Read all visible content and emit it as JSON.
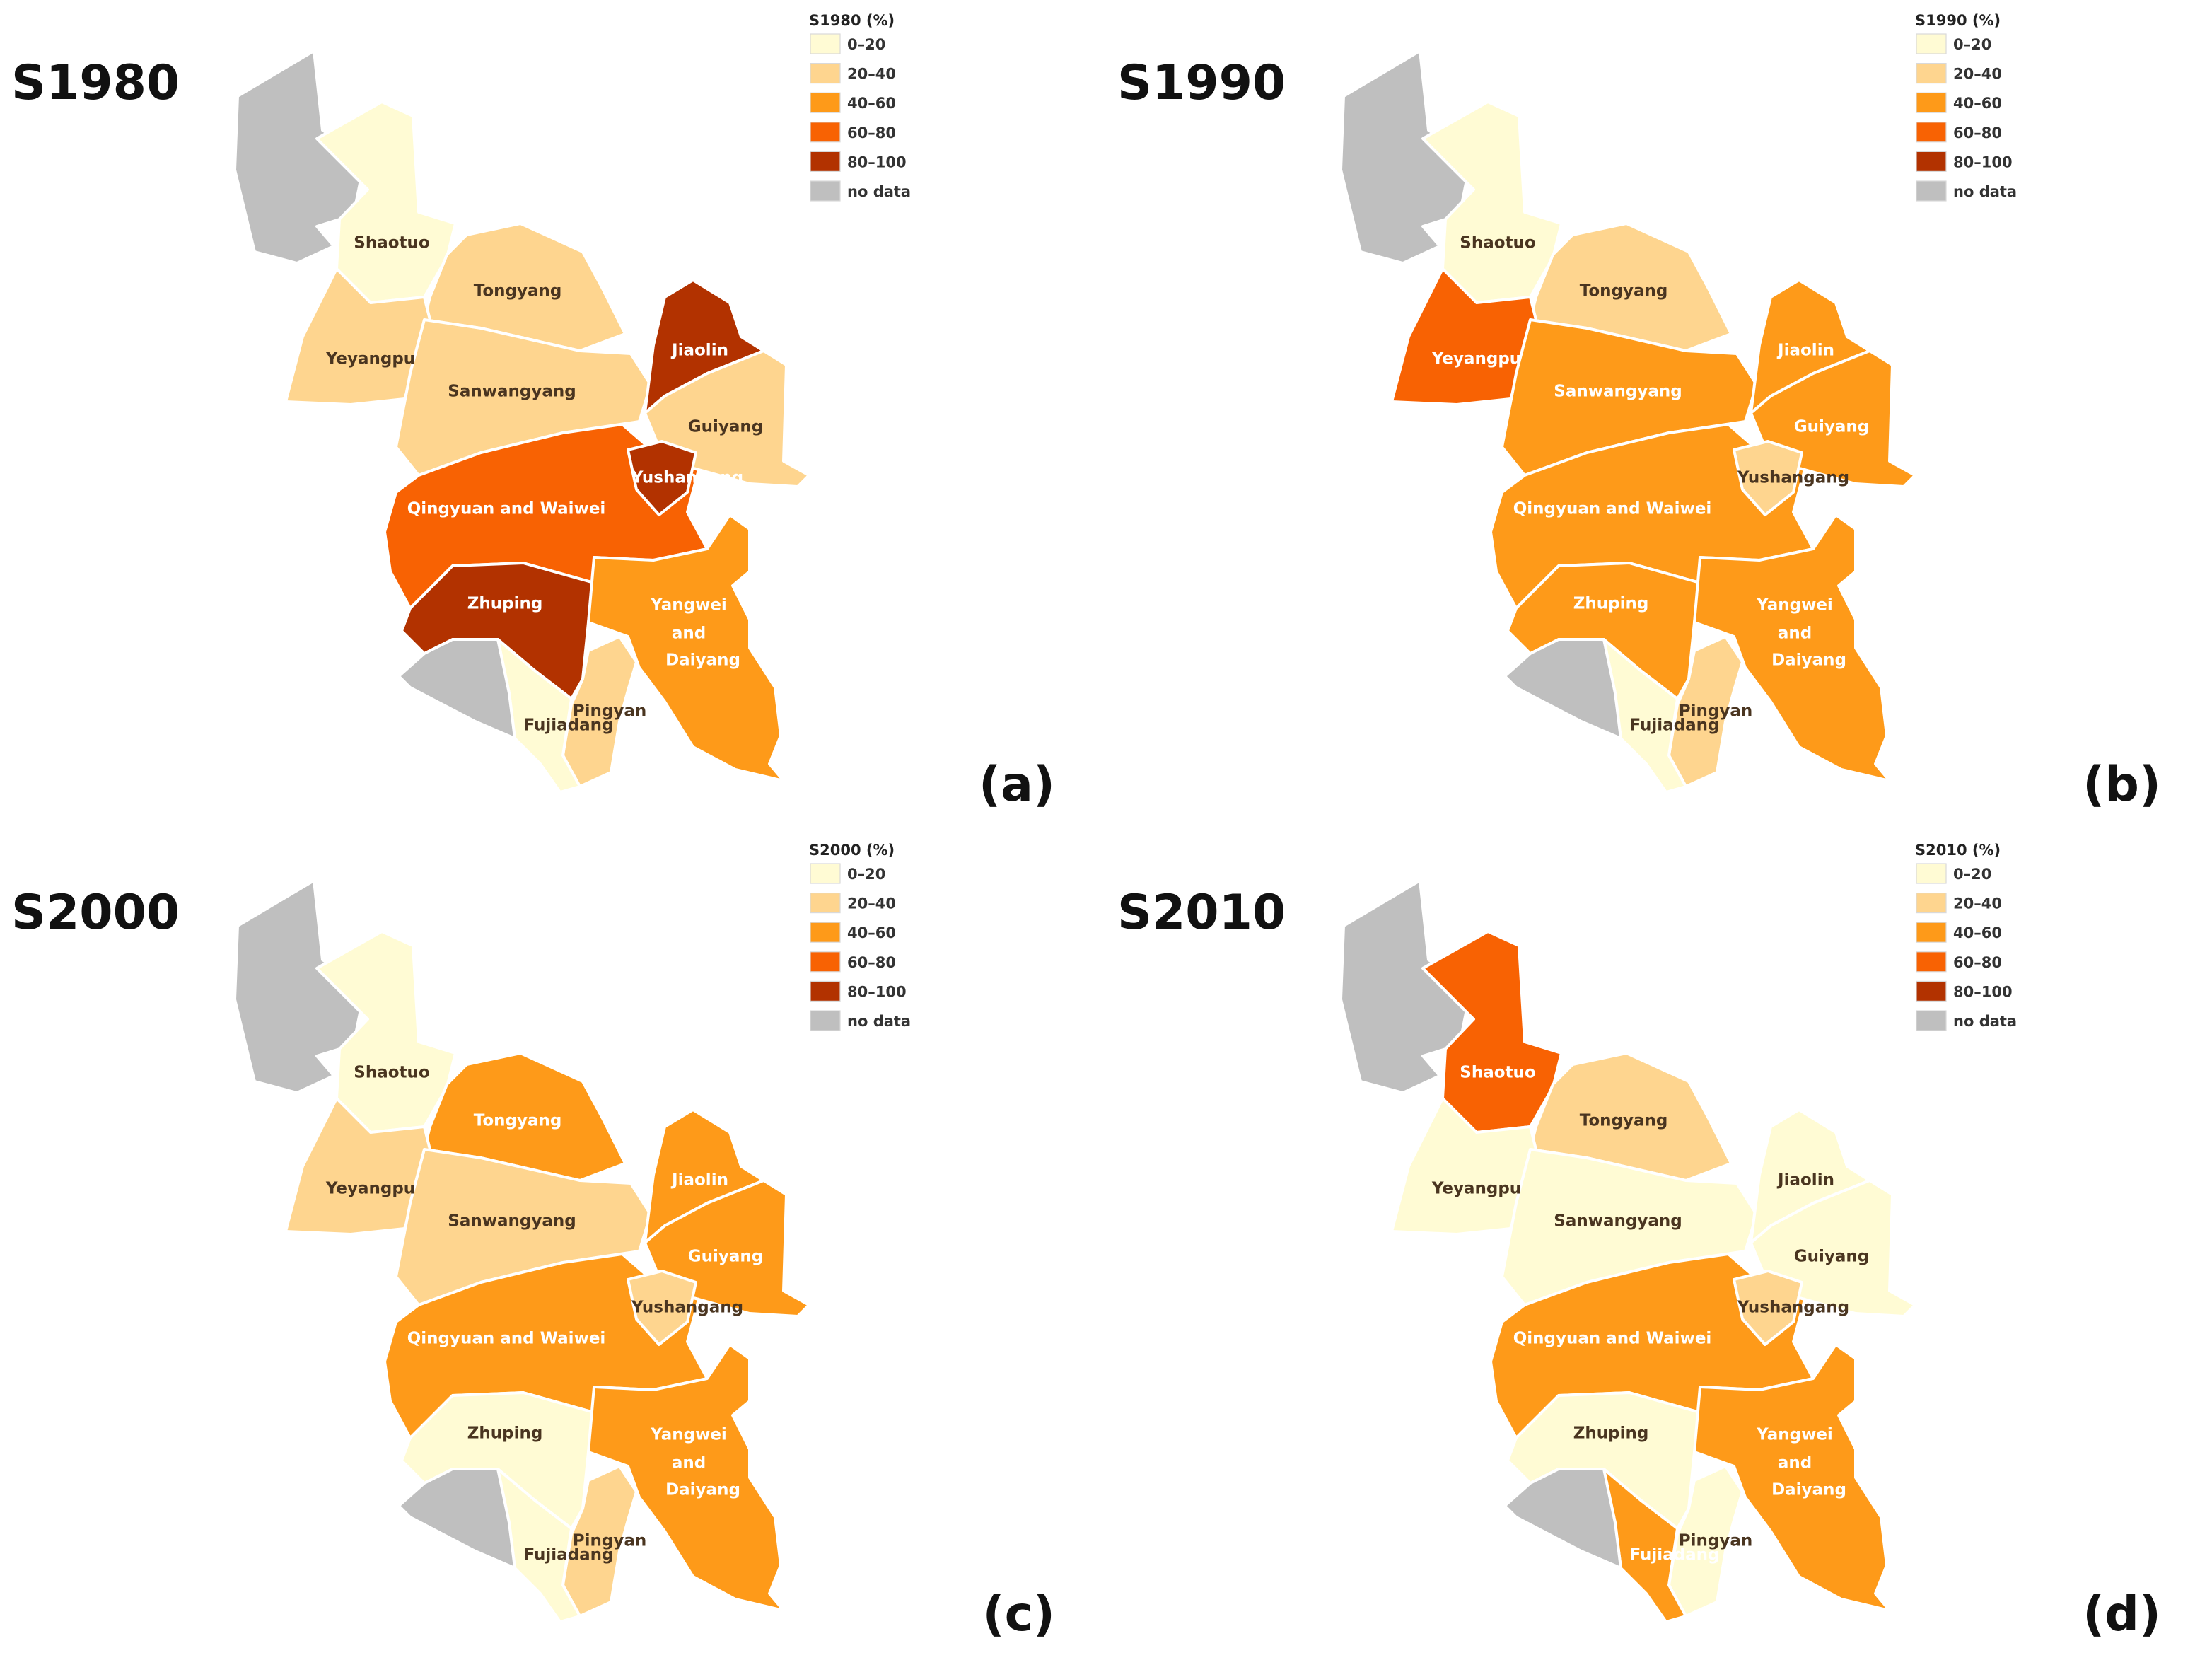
{
  "colors": {
    "0-20": "#FFFBD4",
    "20-40": "#FED58F",
    "40-60": "#FE9A19",
    "60-80": "#F86203",
    "80-100": "#B23200",
    "no data": "#BFBFBF"
  },
  "legend_classes": [
    {
      "key": "0-20",
      "label": "0–20"
    },
    {
      "key": "20-40",
      "label": "20–40"
    },
    {
      "key": "40-60",
      "label": "40–60"
    },
    {
      "key": "60-80",
      "label": "60–80"
    },
    {
      "key": "80-100",
      "label": "80–100"
    },
    {
      "key": "no data",
      "label": "no data"
    }
  ],
  "region_names": {
    "shaotuo": "Shaotuo",
    "tongyang": "Tongyang",
    "yeyangpu": "Yeyangpu",
    "sanwangyang": "Sanwangyang",
    "jiaolin": "Jiaolin",
    "guiyang": "Guiyang",
    "yushangang": "Yushangang",
    "qingyuan": "Qingyuan and Waiwei",
    "zhuping": "Zhuping",
    "yangwei_1": "Yangwei",
    "yangwei_2": "and",
    "yangwei_3": "Daiyang",
    "pingyan": "Pingyan",
    "fujiadang": "Fujiadang"
  },
  "panels": [
    {
      "title": "S1980",
      "letter": "(a)",
      "legend_title": "S1980 (%)",
      "classes": {
        "nodata": "no data",
        "shaotuo": "0-20",
        "tongyang": "20-40",
        "yeyangpu": "20-40",
        "sanwangyang": "20-40",
        "jiaolin": "80-100",
        "guiyang": "20-40",
        "yushangang": "80-100",
        "qingyuan": "60-80",
        "zhuping": "80-100",
        "yangwei": "40-60",
        "pingyan": "20-40",
        "fujiadang": "0-20",
        "southwest": "no data"
      }
    },
    {
      "title": "S1990",
      "letter": "(b)",
      "legend_title": "S1990 (%)",
      "classes": {
        "nodata": "no data",
        "shaotuo": "0-20",
        "tongyang": "20-40",
        "yeyangpu": "60-80",
        "sanwangyang": "40-60",
        "jiaolin": "40-60",
        "guiyang": "40-60",
        "yushangang": "20-40",
        "qingyuan": "40-60",
        "zhuping": "40-60",
        "yangwei": "40-60",
        "pingyan": "20-40",
        "fujiadang": "0-20",
        "southwest": "no data"
      }
    },
    {
      "title": "S2000",
      "letter": "(c)",
      "legend_title": "S2000 (%)",
      "classes": {
        "nodata": "no data",
        "shaotuo": "0-20",
        "tongyang": "40-60",
        "yeyangpu": "20-40",
        "sanwangyang": "20-40",
        "jiaolin": "40-60",
        "guiyang": "40-60",
        "yushangang": "20-40",
        "qingyuan": "40-60",
        "zhuping": "0-20",
        "yangwei": "40-60",
        "pingyan": "20-40",
        "fujiadang": "0-20",
        "southwest": "no data"
      }
    },
    {
      "title": "S2010",
      "letter": "(d)",
      "legend_title": "S2010 (%)",
      "classes": {
        "nodata": "no data",
        "shaotuo": "60-80",
        "tongyang": "20-40",
        "yeyangpu": "0-20",
        "sanwangyang": "0-20",
        "jiaolin": "0-20",
        "guiyang": "0-20",
        "yushangang": "20-40",
        "qingyuan": "40-60",
        "zhuping": "0-20",
        "yangwei": "40-60",
        "pingyan": "0-20",
        "fujiadang": "40-60",
        "southwest": "no data"
      }
    }
  ]
}
